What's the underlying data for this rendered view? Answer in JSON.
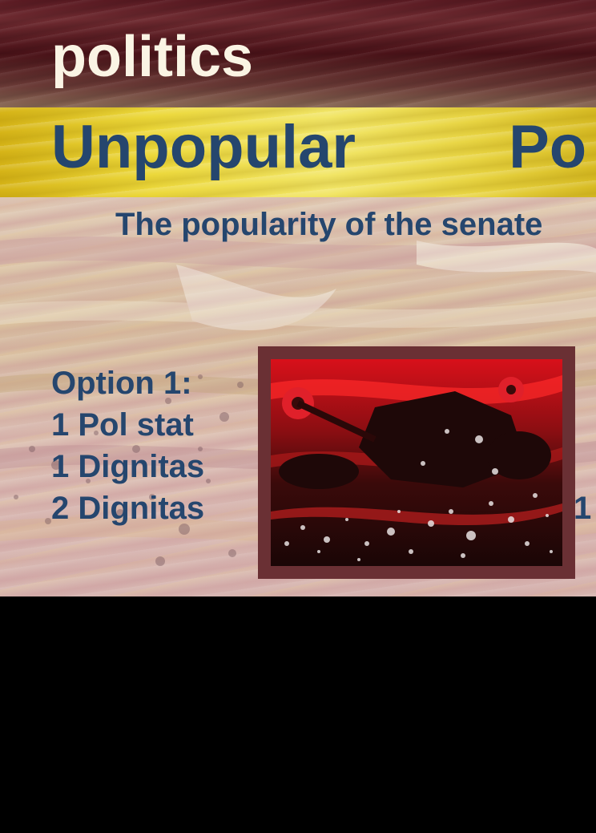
{
  "card": {
    "category": "politics",
    "title": "Unpopular Po",
    "subtitle": "The popularity of the senate",
    "options": [
      "Option 1:",
      "1 Pol stat",
      "1 Dignitas",
      "2 Dignitas"
    ],
    "right_fragment": "1",
    "artwork": "red-chariot-splatter-illustration"
  },
  "colors": {
    "text_blue": "#25466e",
    "category_text": "#faf4e4",
    "title_band": "#ecd83a",
    "top_band": "#5a1a22",
    "frame": "#6a3034",
    "background": "#000000"
  }
}
